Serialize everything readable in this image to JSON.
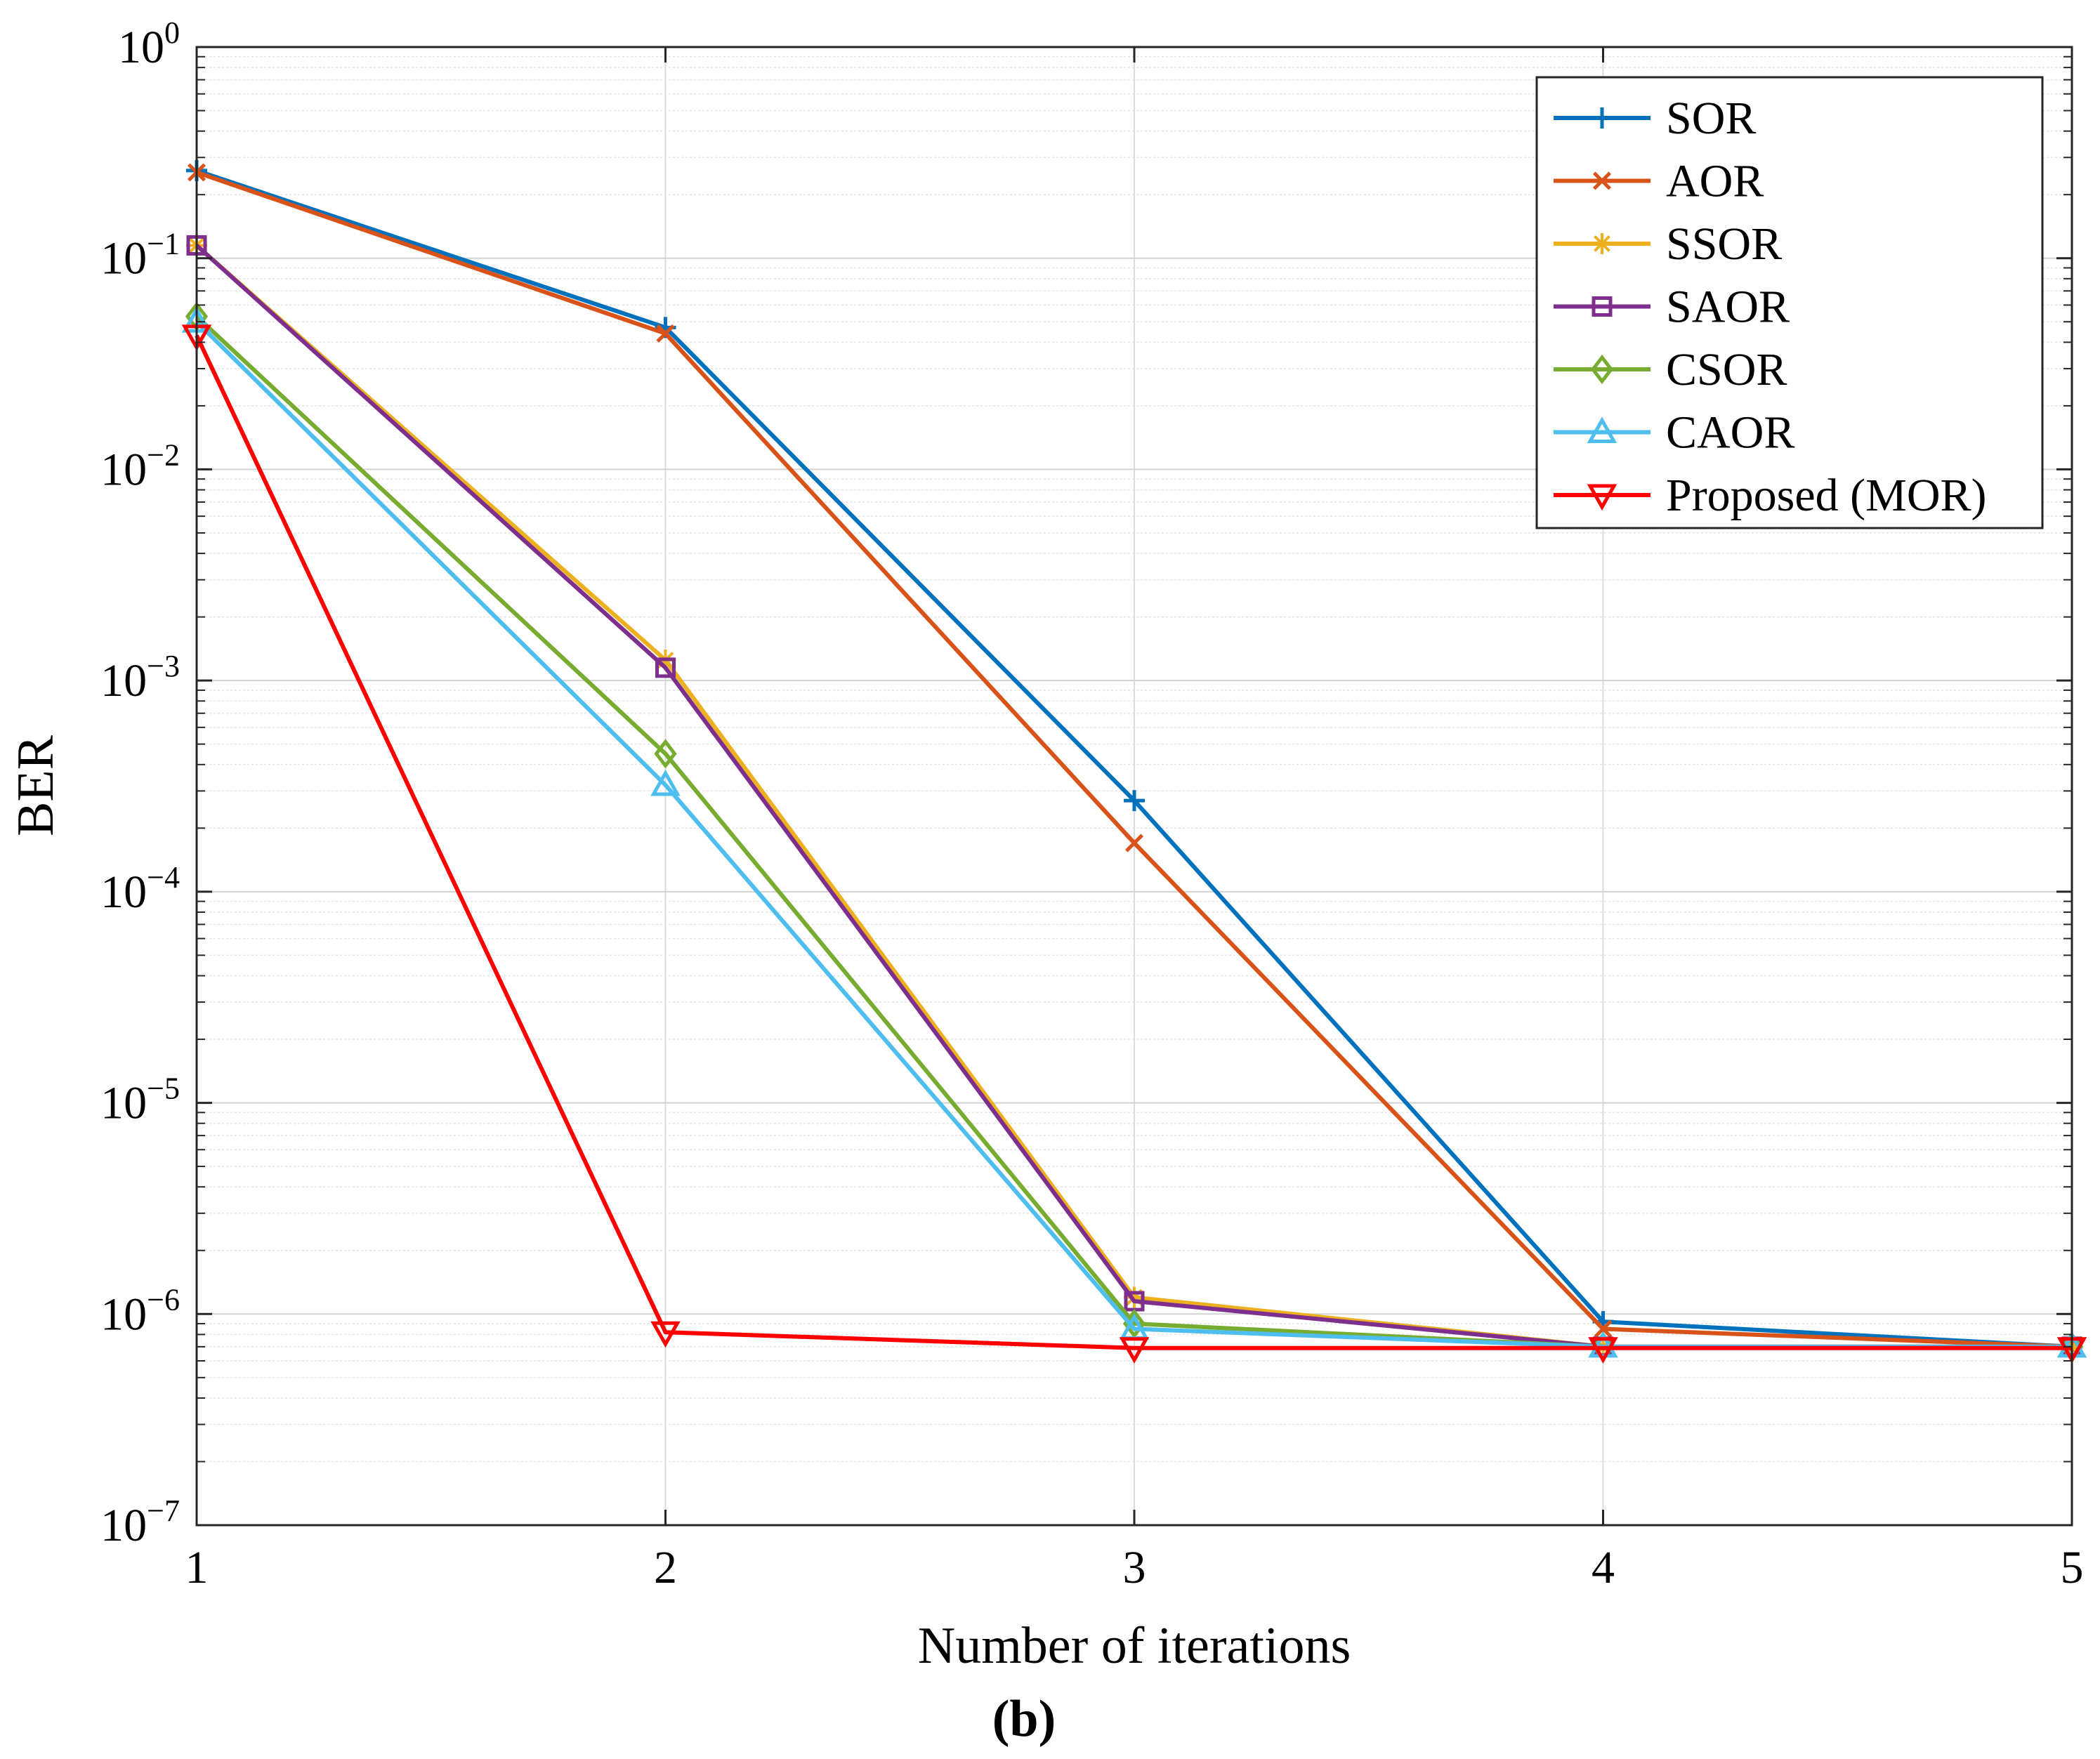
{
  "chart_data": {
    "type": "line",
    "title": "",
    "xlabel": "Number of iterations",
    "ylabel": "BER",
    "panel_label": "(b)",
    "yscale": "log",
    "xlim": [
      1,
      5
    ],
    "ylim": [
      1e-07,
      1
    ],
    "grid": true,
    "legend_position": "top-right",
    "x": [
      1,
      2,
      3,
      4,
      5
    ],
    "x_tick_labels": [
      "1",
      "2",
      "3",
      "4",
      "5"
    ],
    "y_ticks": [
      {
        "value": 1,
        "base": "10",
        "exp": "0"
      },
      {
        "value": 0.1,
        "base": "10",
        "exp": "−1"
      },
      {
        "value": 0.01,
        "base": "10",
        "exp": "−2"
      },
      {
        "value": 0.001,
        "base": "10",
        "exp": "−3"
      },
      {
        "value": 0.0001,
        "base": "10",
        "exp": "−4"
      },
      {
        "value": 1e-05,
        "base": "10",
        "exp": "−5"
      },
      {
        "value": 1e-06,
        "base": "10",
        "exp": "−6"
      },
      {
        "value": 1e-07,
        "base": "10",
        "exp": "−7"
      }
    ],
    "series": [
      {
        "name": "SOR",
        "color": "#0072BD",
        "marker": "plus",
        "values": [
          0.26,
          0.047,
          0.00027,
          9.2e-07,
          7e-07
        ]
      },
      {
        "name": "AOR",
        "color": "#D95319",
        "marker": "x",
        "values": [
          0.255,
          0.044,
          0.00017,
          8.5e-07,
          7e-07
        ]
      },
      {
        "name": "SSOR",
        "color": "#EDB120",
        "marker": "asterisk",
        "values": [
          0.115,
          0.00125,
          1.2e-06,
          7e-07,
          7e-07
        ]
      },
      {
        "name": "SAOR",
        "color": "#7E2F8E",
        "marker": "square",
        "values": [
          0.115,
          0.00115,
          1.15e-06,
          7e-07,
          7e-07
        ]
      },
      {
        "name": "CSOR",
        "color": "#77AC30",
        "marker": "diamond",
        "values": [
          0.053,
          0.00045,
          9e-07,
          7e-07,
          7e-07
        ]
      },
      {
        "name": "CAOR",
        "color": "#4DBEEE",
        "marker": "triangle-up",
        "values": [
          0.05,
          0.00032,
          8.5e-07,
          7e-07,
          7e-07
        ]
      },
      {
        "name": "Proposed (MOR)",
        "color": "#FF0000",
        "marker": "triangle-down",
        "values": [
          0.043,
          8.2e-07,
          6.9e-07,
          6.9e-07,
          6.9e-07
        ]
      }
    ]
  }
}
